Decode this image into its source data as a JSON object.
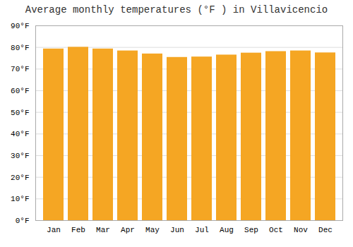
{
  "chart_data": {
    "type": "bar",
    "title": "Average monthly temperatures (°F ) in Villavicencio",
    "categories": [
      "Jan",
      "Feb",
      "Mar",
      "Apr",
      "May",
      "Jun",
      "Jul",
      "Aug",
      "Sep",
      "Oct",
      "Nov",
      "Dec"
    ],
    "values": [
      79.3,
      80.1,
      79.3,
      78.4,
      77.0,
      75.4,
      75.6,
      76.5,
      77.4,
      78.1,
      78.4,
      77.5
    ],
    "color": "#F5A623",
    "ylim": [
      0,
      90
    ],
    "yticks": [
      {
        "value": 0,
        "label": "0°F"
      },
      {
        "value": 10,
        "label": "10°F"
      },
      {
        "value": 20,
        "label": "20°F"
      },
      {
        "value": 30,
        "label": "30°F"
      },
      {
        "value": 40,
        "label": "40°F"
      },
      {
        "value": 50,
        "label": "50°F"
      },
      {
        "value": 60,
        "label": "60°F"
      },
      {
        "value": 70,
        "label": "70°F"
      },
      {
        "value": 80,
        "label": "80°F"
      },
      {
        "value": 90,
        "label": "90°F"
      }
    ],
    "grid": true
  }
}
